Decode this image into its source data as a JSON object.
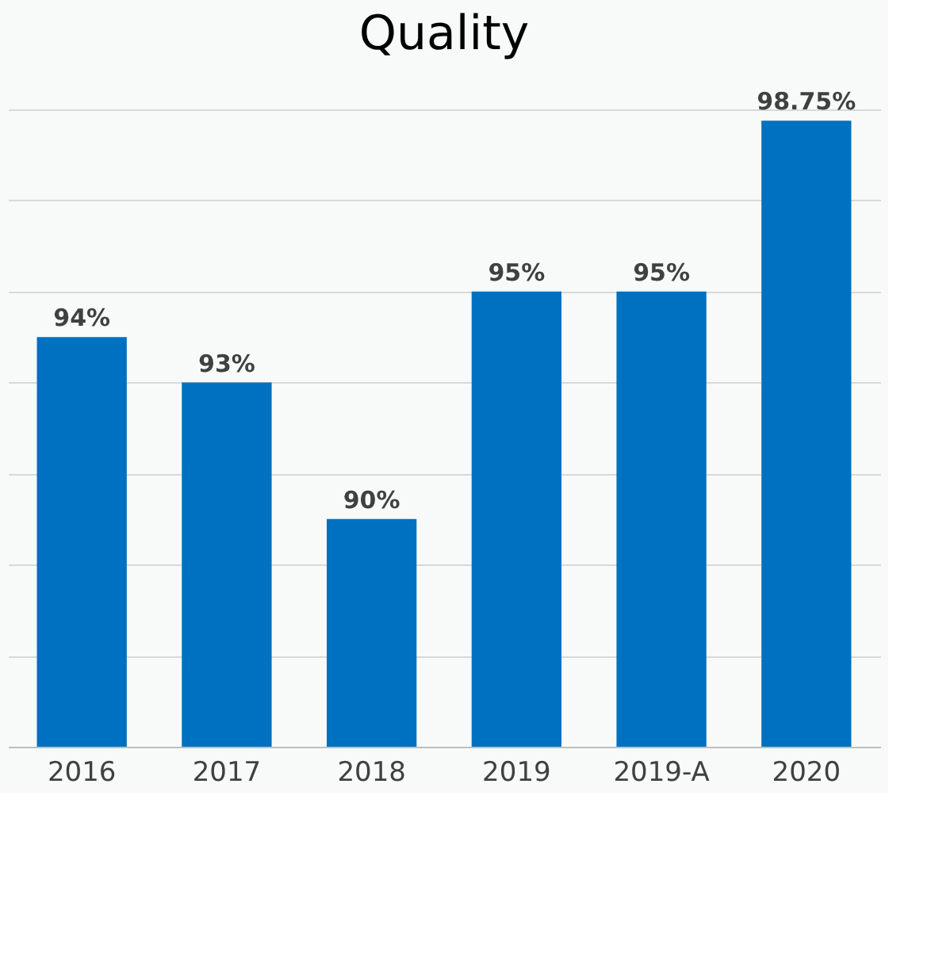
{
  "chart_data": {
    "type": "bar",
    "title": "Quality",
    "categories": [
      "2016",
      "2017",
      "2018",
      "2019",
      "2019-A",
      "2020"
    ],
    "values": [
      94,
      93,
      90,
      95,
      95,
      98.75
    ],
    "value_labels": [
      "94%",
      "93%",
      "90%",
      "95%",
      "95%",
      "98.75%"
    ],
    "color": "#0070c0",
    "ylim": [
      85,
      99
    ],
    "yticks": [
      {
        "value": 85,
        "label": null
      },
      {
        "value": 87,
        "label": null
      },
      {
        "value": 89,
        "label": null
      },
      {
        "value": 91,
        "label": null
      },
      {
        "value": 93,
        "label": null
      },
      {
        "value": 95,
        "label": null
      },
      {
        "value": 97,
        "label": null
      },
      {
        "value": 99,
        "label": null
      }
    ],
    "grid": "y",
    "tick_labels": "x"
  }
}
